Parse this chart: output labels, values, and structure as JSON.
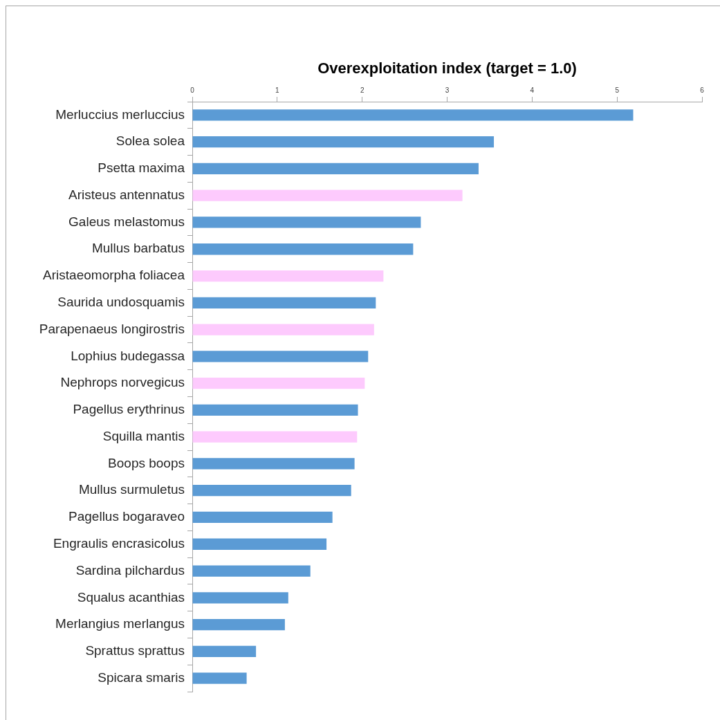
{
  "chart_data": {
    "type": "bar",
    "orientation": "horizontal",
    "title": "Overexploitation index (target = 1.0)",
    "categories": [
      "Merluccius merluccius",
      "Solea solea",
      "Psetta maxima",
      "Aristeus antennatus",
      "Galeus melastomus",
      "Mullus barbatus",
      "Aristaeomorpha foliacea",
      "Saurida undosquamis",
      "Parapenaeus longirostris",
      "Lophius budegassa",
      "Nephrops norvegicus",
      "Pagellus erythrinus",
      "Squilla mantis",
      "Boops boops",
      "Mullus surmuletus",
      "Pagellus bogaraveo",
      "Engraulis encrasicolus",
      "Sardina pilchardus",
      "Squalus acanthias",
      "Merlangius merlangus",
      "Sprattus sprattus",
      "Spicara smaris"
    ],
    "values": [
      5.19,
      3.55,
      3.37,
      3.18,
      2.69,
      2.6,
      2.25,
      2.16,
      2.14,
      2.07,
      2.03,
      1.95,
      1.94,
      1.91,
      1.87,
      1.65,
      1.58,
      1.39,
      1.13,
      1.09,
      0.75,
      0.64
    ],
    "colors": [
      "#5b9bd5",
      "#5b9bd5",
      "#5b9bd5",
      "#fdcafd",
      "#5b9bd5",
      "#5b9bd5",
      "#fdcafd",
      "#5b9bd5",
      "#fdcafd",
      "#5b9bd5",
      "#fdcafd",
      "#5b9bd5",
      "#fdcafd",
      "#5b9bd5",
      "#5b9bd5",
      "#5b9bd5",
      "#5b9bd5",
      "#5b9bd5",
      "#5b9bd5",
      "#5b9bd5",
      "#5b9bd5",
      "#5b9bd5"
    ],
    "xlim": [
      0,
      6
    ],
    "xticks": [
      0,
      1,
      2,
      3,
      4,
      5,
      6
    ]
  }
}
